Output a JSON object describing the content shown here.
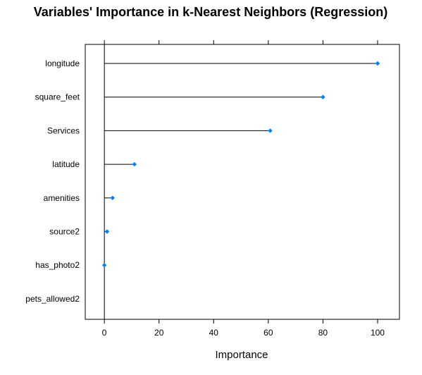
{
  "chart_data": {
    "type": "dotplot",
    "title": "Variables' Importance in k-Nearest Neighbors (Regression)",
    "xlabel": "Importance",
    "ylabel": "",
    "xlim": [
      -7,
      108
    ],
    "xticks": [
      0,
      20,
      40,
      60,
      80,
      100
    ],
    "xtick_labels": [
      "0",
      "20",
      "40",
      "60",
      "80",
      "100"
    ],
    "grid": false,
    "categories": [
      "longitude",
      "square_feet",
      "Services",
      "latitude",
      "amenities",
      "source2",
      "has_photo2",
      "pets_allowed2"
    ],
    "values": [
      100,
      80,
      60.7,
      11,
      3,
      1,
      0,
      0
    ],
    "visible_points": [
      true,
      true,
      true,
      true,
      true,
      true,
      true,
      false
    ],
    "colors": {
      "point": "#0080ff",
      "segment": "#000000",
      "axis": "#000000"
    }
  }
}
